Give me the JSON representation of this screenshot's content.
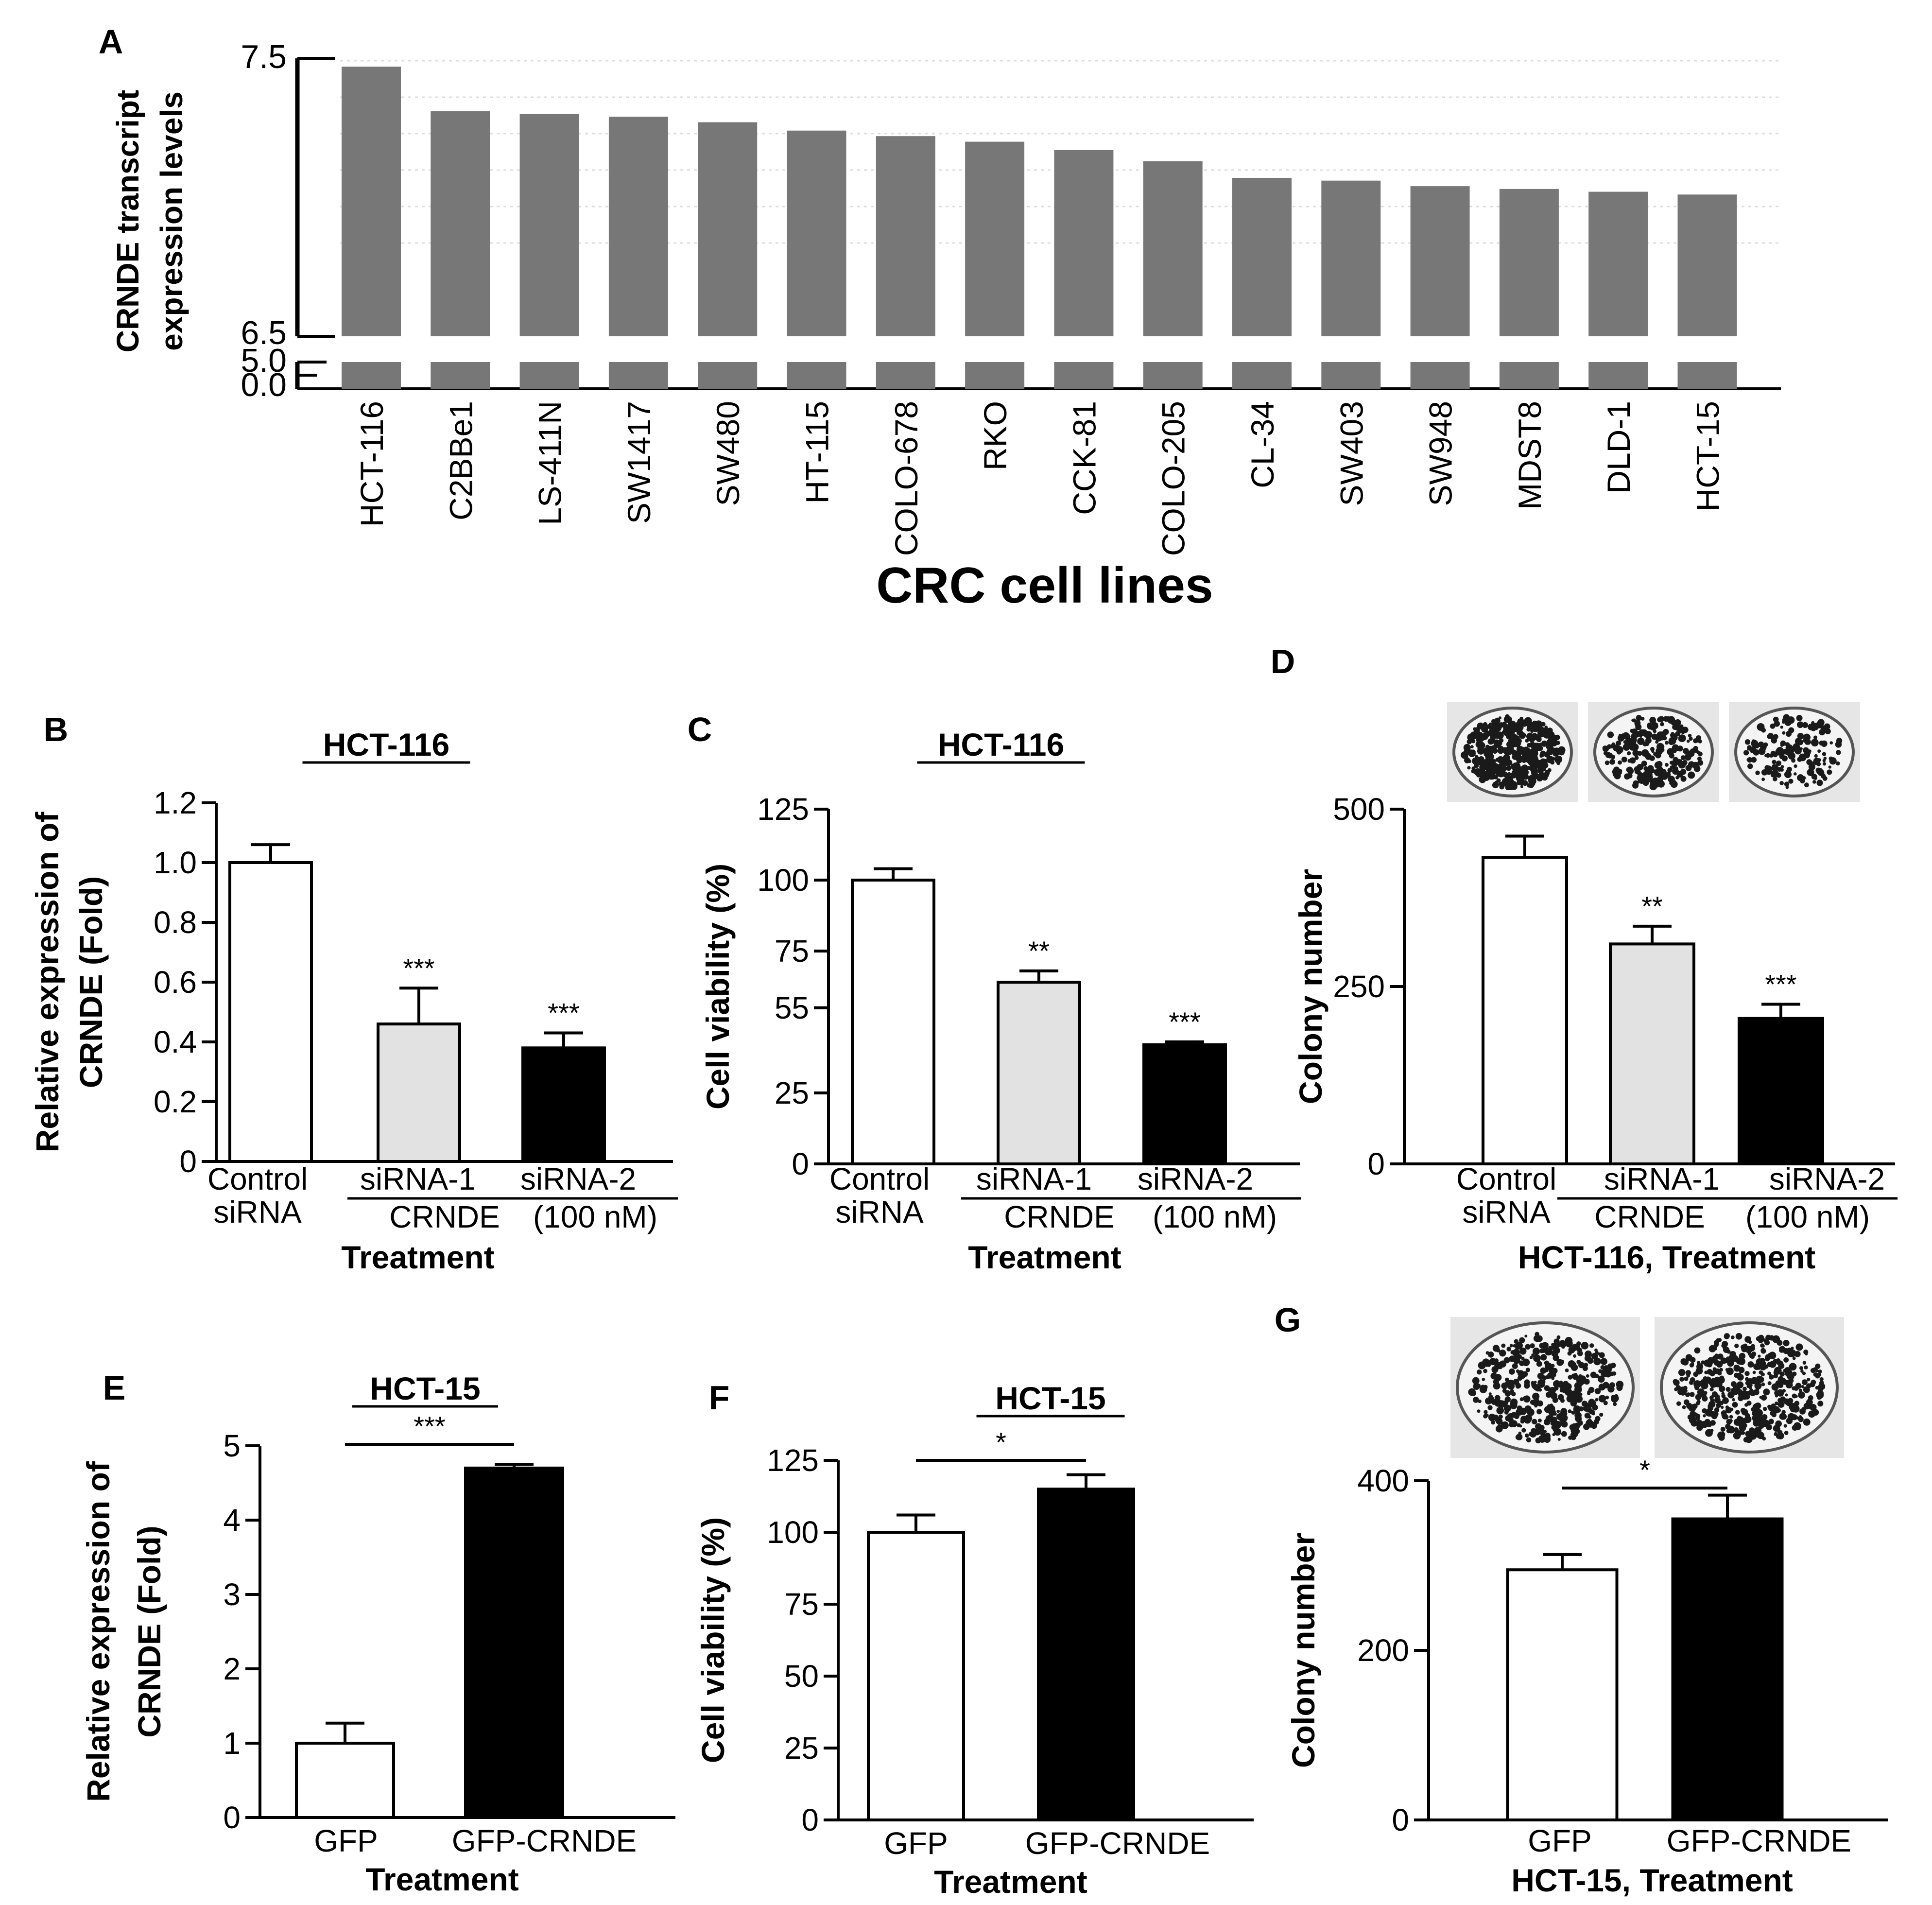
{
  "colors": {
    "ink": "#000000",
    "bar_gray": "#777777",
    "bar_light": "#e2e2e2",
    "bar_white": "#ffffff",
    "bar_black": "#000000",
    "plate_bg": "#e6e6e6"
  },
  "chart_data": [
    {
      "panel": "A",
      "type": "bar",
      "title": "",
      "xlabel": "CRC cell lines",
      "ylabel": [
        "CRNDE transcript",
        "expression levels"
      ],
      "categories": [
        "HCT-116",
        "C2BBe1",
        "LS-411N",
        "SW1417",
        "SW480",
        "HT-115",
        "COLO-678",
        "RKO",
        "CCK-81",
        "COLO-205",
        "CL-34",
        "SW403",
        "SW948",
        "MDST8",
        "DLD-1",
        "HCT-15"
      ],
      "values": [
        7.47,
        7.31,
        7.3,
        7.29,
        7.27,
        7.24,
        7.22,
        7.2,
        7.17,
        7.13,
        7.07,
        7.06,
        7.04,
        7.03,
        7.02,
        7.01
      ],
      "ylim_upper": [
        6.5,
        7.5
      ],
      "ylim_lower": [
        0.0,
        5.0
      ],
      "upper_ticks": [
        "7.5",
        "6.5"
      ],
      "lower_ticks": [
        "5.0",
        "0.0"
      ]
    },
    {
      "panel": "B",
      "type": "bar",
      "title": "HCT-116",
      "ylabel": [
        "Relative expression of",
        "CRNDE (Fold)"
      ],
      "xlabel": "Treatment",
      "categories": [
        "Control siRNA",
        "siRNA-1",
        "siRNA-2"
      ],
      "cat_lines": [
        [
          "Control",
          "siRNA"
        ],
        [
          "siRNA-1"
        ],
        [
          "siRNA-2"
        ]
      ],
      "group": [
        "CRNDE",
        "(100 nM)"
      ],
      "values": [
        1.0,
        0.46,
        0.38
      ],
      "errors": [
        0.06,
        0.12,
        0.05
      ],
      "significance": [
        "",
        "***",
        "***"
      ],
      "ylim": [
        0,
        1.2
      ],
      "ticks": [
        0,
        0.2,
        0.4,
        0.6,
        0.8,
        1.0,
        1.2
      ],
      "tick_labels": [
        "0",
        "0.2",
        "0.4",
        "0.6",
        "0.8",
        "1.0",
        "1.2"
      ]
    },
    {
      "panel": "C",
      "type": "bar",
      "title": "HCT-116",
      "ylabel": [
        "Cell viability (%)"
      ],
      "xlabel": "Treatment",
      "categories": [
        "Control siRNA",
        "siRNA-1",
        "siRNA-2"
      ],
      "cat_lines": [
        [
          "Control",
          "siRNA"
        ],
        [
          "siRNA-1"
        ],
        [
          "siRNA-2"
        ]
      ],
      "group": [
        "CRNDE",
        "(100 nM)"
      ],
      "values": [
        100,
        64,
        42
      ],
      "errors": [
        4,
        4,
        1
      ],
      "significance": [
        "",
        "**",
        "***"
      ],
      "ylim": [
        0,
        125
      ],
      "ticks": [
        0,
        25,
        55,
        75,
        100,
        125
      ],
      "tick_labels": [
        "0",
        "25",
        "55",
        "75",
        "100",
        "125"
      ]
    },
    {
      "panel": "D",
      "type": "bar",
      "title": "",
      "ylabel": [
        "Colony number"
      ],
      "xlabel": "HCT-116, Treatment",
      "categories": [
        "Control siRNA",
        "siRNA-1",
        "siRNA-2"
      ],
      "cat_lines": [
        [
          "Control",
          "siRNA"
        ],
        [
          "siRNA-1"
        ],
        [
          "siRNA-2"
        ]
      ],
      "group": [
        "CRNDE",
        "(100 nM)"
      ],
      "values": [
        432,
        310,
        205
      ],
      "errors": [
        30,
        25,
        20
      ],
      "significance": [
        "",
        "**",
        "***"
      ],
      "ylim": [
        0,
        500
      ],
      "ticks": [
        0,
        250,
        500
      ],
      "tick_labels": [
        "0",
        "250",
        "500"
      ],
      "plates": 3
    },
    {
      "panel": "E",
      "type": "bar",
      "title": "HCT-15",
      "ylabel": [
        "Relative expression of",
        "CRNDE (Fold)"
      ],
      "xlabel": "Treatment",
      "categories": [
        "GFP",
        "GFP-CRNDE"
      ],
      "cat_lines": [
        [
          "GFP"
        ],
        [
          "GFP-CRNDE"
        ]
      ],
      "values": [
        1.0,
        4.7
      ],
      "errors": [
        0.27,
        0.05
      ],
      "significance_bracket": "***",
      "ylim": [
        0,
        5
      ],
      "ticks": [
        0,
        1,
        2,
        3,
        4,
        5
      ],
      "tick_labels": [
        "0",
        "1",
        "2",
        "3",
        "4",
        "5"
      ]
    },
    {
      "panel": "F",
      "type": "bar",
      "title": "HCT-15",
      "ylabel": [
        "Cell viability (%)"
      ],
      "xlabel": "Treatment",
      "categories": [
        "GFP",
        "GFP-CRNDE"
      ],
      "cat_lines": [
        [
          "GFP"
        ],
        [
          "GFP-CRNDE"
        ]
      ],
      "values": [
        100,
        115
      ],
      "errors": [
        6,
        5
      ],
      "significance_bracket": "*",
      "ylim": [
        0,
        125
      ],
      "ticks": [
        0,
        25,
        50,
        75,
        100,
        125
      ],
      "tick_labels": [
        "0",
        "25",
        "50",
        "75",
        "100",
        "125"
      ]
    },
    {
      "panel": "G",
      "type": "bar",
      "title": "",
      "ylabel": [
        "Colony number"
      ],
      "xlabel": "HCT-15, Treatment",
      "categories": [
        "GFP",
        "GFP-CRNDE"
      ],
      "cat_lines": [
        [
          "GFP"
        ],
        [
          "GFP-CRNDE"
        ]
      ],
      "values": [
        295,
        355
      ],
      "errors": [
        18,
        28
      ],
      "significance_bracket": "*",
      "ylim": [
        0,
        400
      ],
      "ticks": [
        0,
        200,
        400
      ],
      "tick_labels": [
        "0",
        "200",
        "400"
      ],
      "plates": 2
    }
  ]
}
